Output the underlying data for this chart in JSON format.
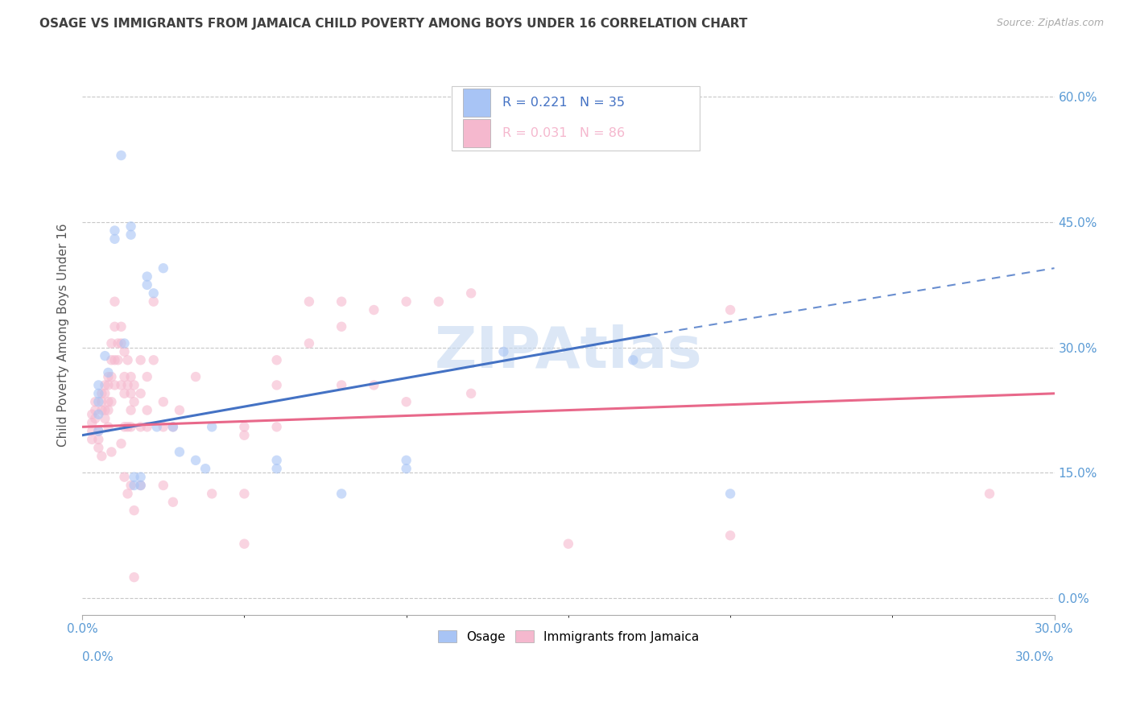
{
  "title": "OSAGE VS IMMIGRANTS FROM JAMAICA CHILD POVERTY AMONG BOYS UNDER 16 CORRELATION CHART",
  "source": "Source: ZipAtlas.com",
  "ylabel_label": "Child Poverty Among Boys Under 16",
  "xlim": [
    0.0,
    0.3
  ],
  "ylim": [
    -0.02,
    0.65
  ],
  "watermark": "ZIPAtlas",
  "osage_scatter": [
    [
      0.005,
      0.22
    ],
    [
      0.005,
      0.2
    ],
    [
      0.005,
      0.245
    ],
    [
      0.005,
      0.255
    ],
    [
      0.007,
      0.29
    ],
    [
      0.008,
      0.27
    ],
    [
      0.005,
      0.235
    ],
    [
      0.01,
      0.44
    ],
    [
      0.01,
      0.43
    ],
    [
      0.012,
      0.53
    ],
    [
      0.013,
      0.305
    ],
    [
      0.015,
      0.445
    ],
    [
      0.015,
      0.435
    ],
    [
      0.016,
      0.145
    ],
    [
      0.016,
      0.135
    ],
    [
      0.018,
      0.135
    ],
    [
      0.018,
      0.145
    ],
    [
      0.02,
      0.385
    ],
    [
      0.02,
      0.375
    ],
    [
      0.022,
      0.365
    ],
    [
      0.023,
      0.205
    ],
    [
      0.025,
      0.395
    ],
    [
      0.028,
      0.205
    ],
    [
      0.03,
      0.175
    ],
    [
      0.035,
      0.165
    ],
    [
      0.038,
      0.155
    ],
    [
      0.04,
      0.205
    ],
    [
      0.06,
      0.165
    ],
    [
      0.06,
      0.155
    ],
    [
      0.08,
      0.125
    ],
    [
      0.1,
      0.165
    ],
    [
      0.1,
      0.155
    ],
    [
      0.13,
      0.295
    ],
    [
      0.17,
      0.285
    ],
    [
      0.2,
      0.125
    ]
  ],
  "jamaica_scatter": [
    [
      0.003,
      0.22
    ],
    [
      0.003,
      0.21
    ],
    [
      0.003,
      0.2
    ],
    [
      0.003,
      0.19
    ],
    [
      0.004,
      0.235
    ],
    [
      0.004,
      0.225
    ],
    [
      0.004,
      0.215
    ],
    [
      0.005,
      0.2
    ],
    [
      0.005,
      0.19
    ],
    [
      0.005,
      0.18
    ],
    [
      0.006,
      0.245
    ],
    [
      0.006,
      0.235
    ],
    [
      0.006,
      0.225
    ],
    [
      0.006,
      0.17
    ],
    [
      0.007,
      0.255
    ],
    [
      0.007,
      0.245
    ],
    [
      0.007,
      0.225
    ],
    [
      0.007,
      0.215
    ],
    [
      0.008,
      0.265
    ],
    [
      0.008,
      0.255
    ],
    [
      0.008,
      0.235
    ],
    [
      0.008,
      0.225
    ],
    [
      0.008,
      0.205
    ],
    [
      0.009,
      0.305
    ],
    [
      0.009,
      0.285
    ],
    [
      0.009,
      0.265
    ],
    [
      0.009,
      0.235
    ],
    [
      0.009,
      0.175
    ],
    [
      0.01,
      0.355
    ],
    [
      0.01,
      0.325
    ],
    [
      0.01,
      0.285
    ],
    [
      0.01,
      0.255
    ],
    [
      0.011,
      0.305
    ],
    [
      0.011,
      0.285
    ],
    [
      0.012,
      0.325
    ],
    [
      0.012,
      0.305
    ],
    [
      0.012,
      0.255
    ],
    [
      0.012,
      0.185
    ],
    [
      0.013,
      0.295
    ],
    [
      0.013,
      0.265
    ],
    [
      0.013,
      0.245
    ],
    [
      0.013,
      0.205
    ],
    [
      0.013,
      0.145
    ],
    [
      0.014,
      0.285
    ],
    [
      0.014,
      0.255
    ],
    [
      0.014,
      0.205
    ],
    [
      0.014,
      0.125
    ],
    [
      0.015,
      0.265
    ],
    [
      0.015,
      0.245
    ],
    [
      0.015,
      0.225
    ],
    [
      0.015,
      0.205
    ],
    [
      0.015,
      0.135
    ],
    [
      0.016,
      0.255
    ],
    [
      0.016,
      0.235
    ],
    [
      0.016,
      0.105
    ],
    [
      0.016,
      0.025
    ],
    [
      0.018,
      0.285
    ],
    [
      0.018,
      0.245
    ],
    [
      0.018,
      0.205
    ],
    [
      0.018,
      0.135
    ],
    [
      0.02,
      0.265
    ],
    [
      0.02,
      0.225
    ],
    [
      0.02,
      0.205
    ],
    [
      0.022,
      0.355
    ],
    [
      0.022,
      0.285
    ],
    [
      0.025,
      0.235
    ],
    [
      0.025,
      0.205
    ],
    [
      0.025,
      0.135
    ],
    [
      0.028,
      0.205
    ],
    [
      0.028,
      0.115
    ],
    [
      0.03,
      0.225
    ],
    [
      0.035,
      0.265
    ],
    [
      0.04,
      0.125
    ],
    [
      0.05,
      0.205
    ],
    [
      0.05,
      0.195
    ],
    [
      0.05,
      0.125
    ],
    [
      0.05,
      0.065
    ],
    [
      0.06,
      0.285
    ],
    [
      0.06,
      0.255
    ],
    [
      0.06,
      0.205
    ],
    [
      0.07,
      0.355
    ],
    [
      0.07,
      0.305
    ],
    [
      0.08,
      0.355
    ],
    [
      0.08,
      0.325
    ],
    [
      0.08,
      0.255
    ],
    [
      0.09,
      0.345
    ],
    [
      0.09,
      0.255
    ],
    [
      0.1,
      0.355
    ],
    [
      0.1,
      0.235
    ],
    [
      0.11,
      0.355
    ],
    [
      0.12,
      0.365
    ],
    [
      0.12,
      0.245
    ],
    [
      0.15,
      0.065
    ],
    [
      0.2,
      0.345
    ],
    [
      0.2,
      0.075
    ],
    [
      0.28,
      0.125
    ]
  ],
  "osage_line_solid": {
    "x": [
      0.0,
      0.175
    ],
    "y": [
      0.195,
      0.315
    ]
  },
  "osage_line_dash": {
    "x": [
      0.175,
      0.3
    ],
    "y": [
      0.315,
      0.395
    ]
  },
  "jamaica_line": {
    "x": [
      0.0,
      0.3
    ],
    "y": [
      0.205,
      0.245
    ]
  },
  "osage_color": "#a8c4f5",
  "jamaica_color": "#f5b8ce",
  "osage_line_color": "#4472c4",
  "jamaica_line_color": "#e8688a",
  "legend_text_color": "#4472c4",
  "grid_color": "#c8c8c8",
  "background_color": "#ffffff",
  "title_color": "#404040",
  "right_axis_label_color": "#5b9bd5",
  "watermark_color": "#c5d8f0",
  "scatter_alpha": 0.6,
  "scatter_size": 80
}
